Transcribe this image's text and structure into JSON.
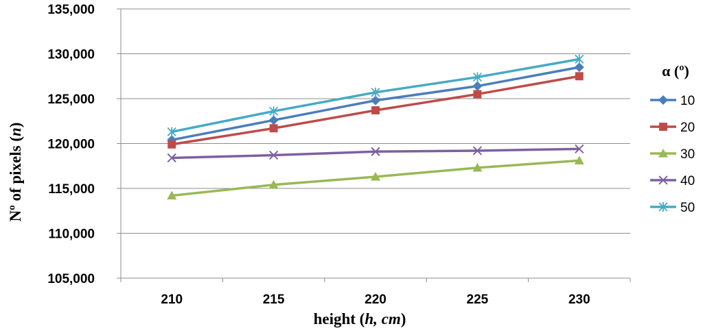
{
  "chart_data": {
    "type": "line",
    "title": "",
    "xlabel_parts": [
      "height (",
      "h, cm",
      ")"
    ],
    "ylabel_parts": [
      "Nº of pixels (",
      "n",
      ")"
    ],
    "xlabel": "height (h, cm)",
    "ylabel": "Nº of pixels (n)",
    "x": [
      210,
      215,
      220,
      225,
      230
    ],
    "x_tick_labels": [
      "210",
      "215",
      "220",
      "225",
      "230"
    ],
    "ylim": [
      105000,
      135000
    ],
    "y_ticks": [
      105000,
      110000,
      115000,
      120000,
      125000,
      130000,
      135000
    ],
    "y_tick_labels": [
      "105,000",
      "110,000",
      "115,000",
      "120,000",
      "125,000",
      "130,000",
      "135,000"
    ],
    "grid": "horizontal",
    "legend": {
      "title": "α (º)",
      "placement": "right"
    },
    "series": [
      {
        "name": "10",
        "color": "#4a7ebb",
        "marker": "diamond",
        "values": [
          120400,
          122600,
          124800,
          126400,
          128500
        ]
      },
      {
        "name": "20",
        "color": "#be4b48",
        "marker": "square",
        "values": [
          119900,
          121700,
          123700,
          125500,
          127500
        ]
      },
      {
        "name": "30",
        "color": "#98b954",
        "marker": "triangle",
        "values": [
          114200,
          115400,
          116300,
          117300,
          118100
        ]
      },
      {
        "name": "40",
        "color": "#7d60a0",
        "marker": "x",
        "values": [
          118400,
          118700,
          119100,
          119200,
          119400
        ]
      },
      {
        "name": "50",
        "color": "#46aac5",
        "marker": "star",
        "values": [
          121300,
          123600,
          125700,
          127400,
          129400
        ]
      }
    ]
  }
}
